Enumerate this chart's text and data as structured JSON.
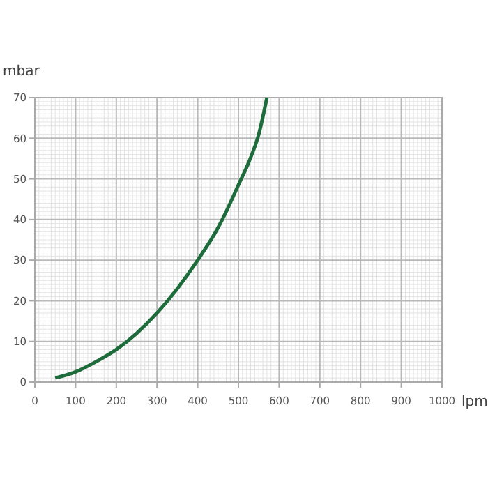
{
  "chart_data": {
    "type": "line",
    "xlabel": "lpm",
    "ylabel": "mbar",
    "x": [
      50,
      100,
      150,
      200,
      250,
      300,
      350,
      400,
      450,
      475,
      500,
      525,
      550,
      570
    ],
    "series": [
      {
        "color": "#1e6b3c",
        "values": [
          1,
          2.5,
          5,
          8,
          12,
          17,
          23,
          30,
          38,
          43,
          48.5,
          54,
          61,
          70
        ]
      }
    ],
    "xlim": [
      0,
      1000
    ],
    "ylim": [
      0,
      70
    ],
    "xticks": [
      0,
      100,
      200,
      300,
      400,
      500,
      600,
      700,
      800,
      900,
      1000
    ],
    "yticks": [
      0,
      10,
      20,
      30,
      40,
      50,
      60,
      70
    ],
    "grid": true,
    "marker": "none",
    "line_style": "solid"
  }
}
